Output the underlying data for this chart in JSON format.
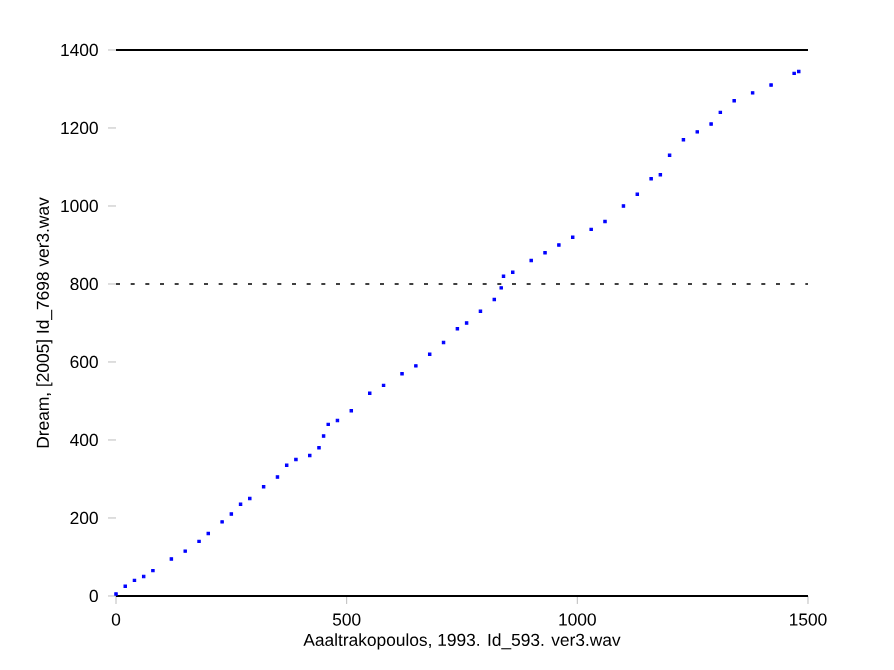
{
  "chart_data": {
    "type": "scatter",
    "xlabel": "Aaaltrakopoulos, 1993. Id_593. ver3.wav",
    "ylabel": "Dream, [2005] Id_7698 ver3.wav",
    "xlim": [
      0,
      1500
    ],
    "xticks": [
      0,
      500,
      1000,
      1500
    ],
    "ylim": [
      0,
      1400
    ],
    "yticks": [
      0,
      200,
      400,
      600,
      800,
      1000,
      1200,
      1400
    ],
    "marker": "square",
    "series": [
      {
        "color": "#0000ff",
        "x": [
          0,
          20,
          40,
          60,
          80,
          120,
          150,
          180,
          200,
          230,
          250,
          270,
          290,
          320,
          350,
          370,
          390,
          420,
          440,
          450,
          460,
          480,
          510,
          550,
          580,
          620,
          650,
          680,
          710,
          740,
          760,
          790,
          820,
          835,
          840,
          860,
          900,
          930,
          960,
          990,
          1030,
          1060,
          1100,
          1130,
          1160,
          1180,
          1200,
          1230,
          1260,
          1290,
          1310,
          1340,
          1380,
          1420,
          1470,
          1480
        ],
        "values": [
          5,
          25,
          40,
          50,
          65,
          95,
          115,
          140,
          160,
          190,
          210,
          235,
          250,
          280,
          305,
          335,
          350,
          360,
          380,
          410,
          440,
          450,
          475,
          520,
          540,
          570,
          590,
          620,
          650,
          685,
          700,
          730,
          760,
          790,
          820,
          830,
          860,
          880,
          900,
          920,
          940,
          960,
          1000,
          1030,
          1070,
          1080,
          1130,
          1170,
          1190,
          1210,
          1240,
          1270,
          1290,
          1310,
          1340,
          1345
        ]
      }
    ],
    "ref_lines": [
      {
        "axis": "y",
        "value": 1400,
        "line_style": "solid"
      },
      {
        "axis": "y",
        "value": 800,
        "line_style": "dotted"
      }
    ]
  }
}
